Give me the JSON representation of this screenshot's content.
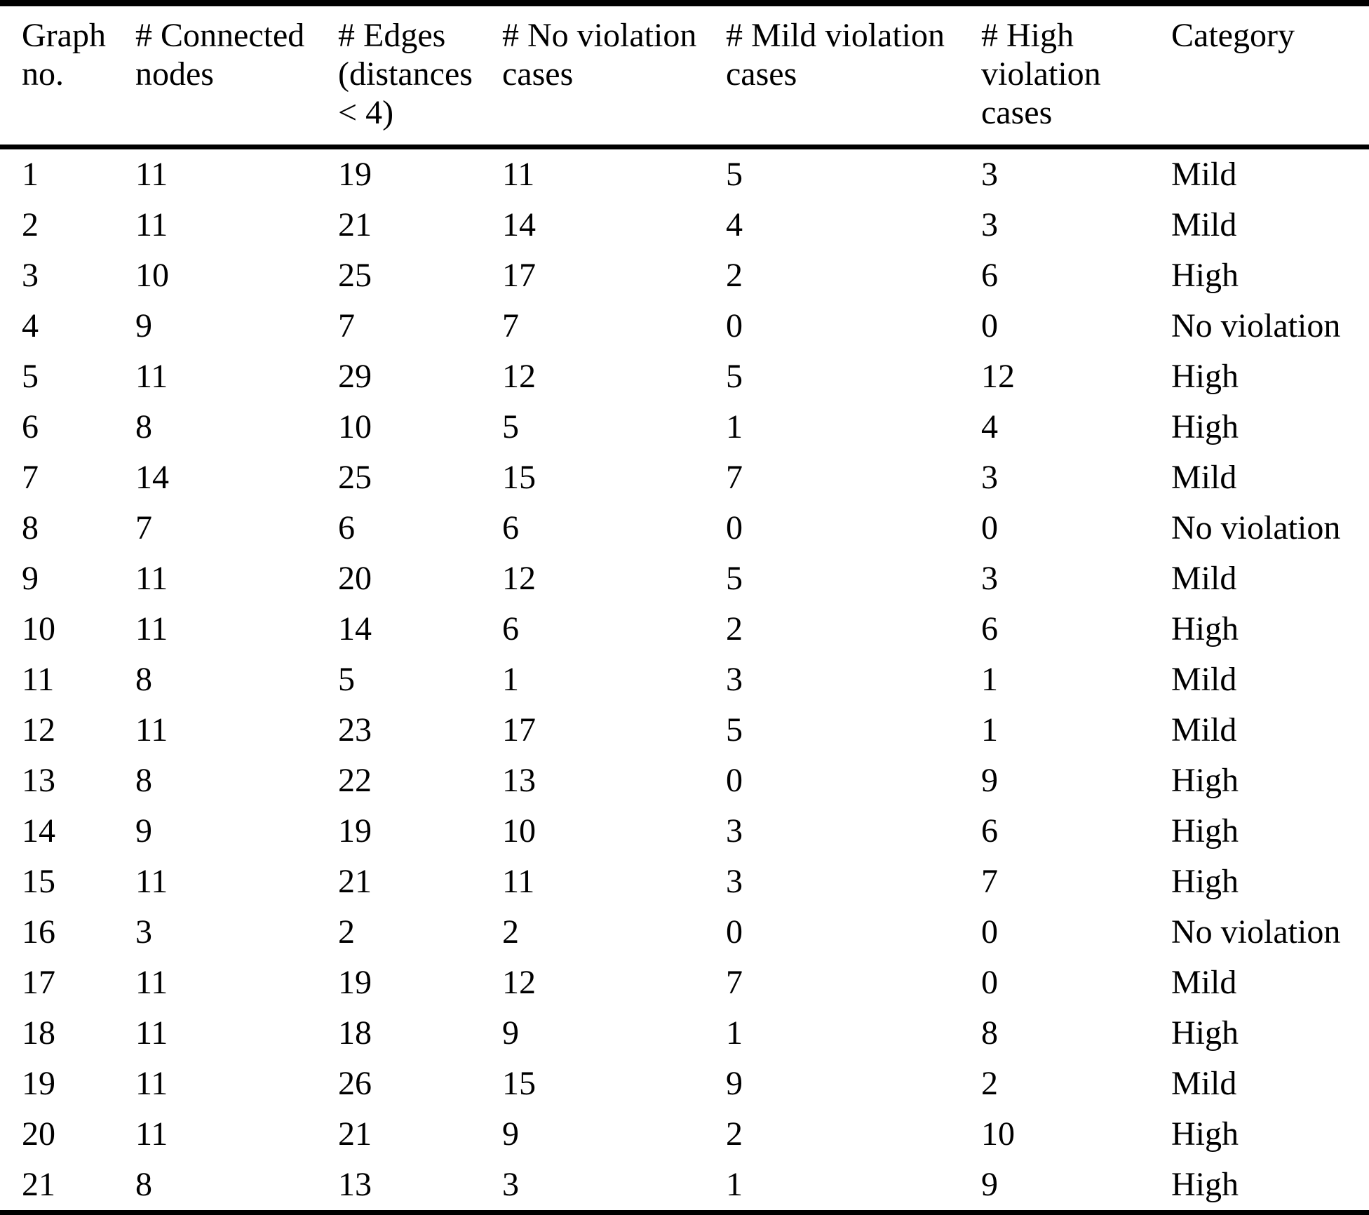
{
  "table": {
    "columns": [
      {
        "id": "graph-no",
        "label": "Graph\nno."
      },
      {
        "id": "connected-nodes",
        "label": "# Connected\nnodes"
      },
      {
        "id": "edges",
        "label": "# Edges\n(distances\n< 4)"
      },
      {
        "id": "no-violation-cases",
        "label": "# No violation\ncases"
      },
      {
        "id": "mild-violation-cases",
        "label": "# Mild violation\ncases"
      },
      {
        "id": "high-violation-cases",
        "label": "# High\nviolation\ncases"
      },
      {
        "id": "category",
        "label": "Category"
      }
    ],
    "rows": [
      [
        "1",
        "11",
        "19",
        "11",
        "5",
        "3",
        "Mild"
      ],
      [
        "2",
        "11",
        "21",
        "14",
        "4",
        "3",
        "Mild"
      ],
      [
        "3",
        "10",
        "25",
        "17",
        "2",
        "6",
        "High"
      ],
      [
        "4",
        "9",
        "7",
        "7",
        "0",
        "0",
        "No violation"
      ],
      [
        "5",
        "11",
        "29",
        "12",
        "5",
        "12",
        "High"
      ],
      [
        "6",
        "8",
        "10",
        "5",
        "1",
        "4",
        "High"
      ],
      [
        "7",
        "14",
        "25",
        "15",
        "7",
        "3",
        "Mild"
      ],
      [
        "8",
        "7",
        "6",
        "6",
        "0",
        "0",
        "No violation"
      ],
      [
        "9",
        "11",
        "20",
        "12",
        "5",
        "3",
        "Mild"
      ],
      [
        "10",
        "11",
        "14",
        "6",
        "2",
        "6",
        "High"
      ],
      [
        "11",
        "8",
        "5",
        "1",
        "3",
        "1",
        "Mild"
      ],
      [
        "12",
        "11",
        "23",
        "17",
        "5",
        "1",
        "Mild"
      ],
      [
        "13",
        "8",
        "22",
        "13",
        "0",
        "9",
        "High"
      ],
      [
        "14",
        "9",
        "19",
        "10",
        "3",
        "6",
        "High"
      ],
      [
        "15",
        "11",
        "21",
        "11",
        "3",
        "7",
        "High"
      ],
      [
        "16",
        "3",
        "2",
        "2",
        "0",
        "0",
        "No violation"
      ],
      [
        "17",
        "11",
        "19",
        "12",
        "7",
        "0",
        "Mild"
      ],
      [
        "18",
        "11",
        "18",
        "9",
        "1",
        "8",
        "High"
      ],
      [
        "19",
        "11",
        "26",
        "15",
        "9",
        "2",
        "Mild"
      ],
      [
        "20",
        "11",
        "21",
        "9",
        "2",
        "10",
        "High"
      ],
      [
        "21",
        "8",
        "13",
        "3",
        "1",
        "9",
        "High"
      ]
    ],
    "text_color": "#000000",
    "background_color": "#ffffff"
  }
}
